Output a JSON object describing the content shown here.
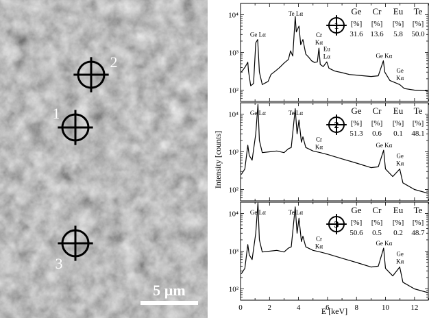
{
  "sem_image": {
    "scale_bar_label": "5 µm",
    "marker_labels": [
      "1",
      "2",
      "3"
    ]
  },
  "chart_data": {
    "type": "line",
    "xlabel": "E [keV]",
    "ylabel": "Intensity [counts]",
    "y_scale": "log",
    "x_ticks": [
      0,
      2,
      4,
      6,
      8,
      10,
      12
    ],
    "xlim": [
      0,
      13
    ],
    "ylim": [
      50,
      20000
    ],
    "y_tick_labels": [
      "10²",
      "10³",
      "10⁴"
    ],
    "table_headers": [
      "Ge",
      "Cr",
      "Eu",
      "Te"
    ],
    "table_units": [
      "[%]",
      "[%]",
      "[%]",
      "[%]"
    ],
    "panels": [
      {
        "id": "1",
        "composition": [
          "31.6",
          "13.6",
          "5.8",
          "50.0"
        ],
        "spectrum": [
          [
            0.05,
            300
          ],
          [
            0.3,
            400
          ],
          [
            0.5,
            550
          ],
          [
            0.55,
            320
          ],
          [
            0.7,
            130
          ],
          [
            0.9,
            150
          ],
          [
            1.05,
            1800
          ],
          [
            1.18,
            2200
          ],
          [
            1.3,
            300
          ],
          [
            1.5,
            140
          ],
          [
            1.9,
            170
          ],
          [
            2.1,
            260
          ],
          [
            2.4,
            320
          ],
          [
            2.7,
            400
          ],
          [
            3.0,
            520
          ],
          [
            3.3,
            650
          ],
          [
            3.45,
            1100
          ],
          [
            3.6,
            800
          ],
          [
            3.77,
            9000
          ],
          [
            3.85,
            3500
          ],
          [
            4.03,
            5000
          ],
          [
            4.15,
            1600
          ],
          [
            4.3,
            2200
          ],
          [
            4.5,
            900
          ],
          [
            4.7,
            750
          ],
          [
            4.9,
            600
          ],
          [
            5.1,
            540
          ],
          [
            5.3,
            560
          ],
          [
            5.41,
            1300
          ],
          [
            5.5,
            480
          ],
          [
            5.7,
            420
          ],
          [
            5.95,
            560
          ],
          [
            6.1,
            380
          ],
          [
            6.5,
            320
          ],
          [
            7.0,
            290
          ],
          [
            7.5,
            260
          ],
          [
            8.0,
            250
          ],
          [
            8.5,
            240
          ],
          [
            9.0,
            230
          ],
          [
            9.5,
            240
          ],
          [
            9.85,
            600
          ],
          [
            9.95,
            300
          ],
          [
            10.3,
            180
          ],
          [
            10.8,
            150
          ],
          [
            10.98,
            140
          ],
          [
            11.3,
            110
          ],
          [
            12.0,
            100
          ],
          [
            12.9,
            95
          ]
        ],
        "annotations": [
          {
            "text": "Ge Lα",
            "x": 1.2
          },
          {
            "text": "Te Lα",
            "x": 3.8
          },
          {
            "text": "Cr Kα",
            "x": 5.41
          },
          {
            "text": "Eu Lα",
            "x": 5.95
          },
          {
            "text": "Ge Kα",
            "x": 9.9
          },
          {
            "text": "Ge Kα",
            "x": 11.0
          }
        ]
      },
      {
        "id": "2",
        "composition": [
          "51.3",
          "0.6",
          "0.1",
          "48.1"
        ],
        "spectrum": [
          [
            0.05,
            250
          ],
          [
            0.3,
            350
          ],
          [
            0.5,
            1500
          ],
          [
            0.6,
            800
          ],
          [
            0.8,
            600
          ],
          [
            1.05,
            3000
          ],
          [
            1.2,
            18000
          ],
          [
            1.3,
            2000
          ],
          [
            1.5,
            950
          ],
          [
            2.0,
            1000
          ],
          [
            2.5,
            1050
          ],
          [
            3.0,
            950
          ],
          [
            3.3,
            1200
          ],
          [
            3.5,
            1300
          ],
          [
            3.77,
            14000
          ],
          [
            3.9,
            3000
          ],
          [
            4.03,
            7000
          ],
          [
            4.2,
            1800
          ],
          [
            4.3,
            2500
          ],
          [
            4.5,
            1300
          ],
          [
            5.0,
            1050
          ],
          [
            5.5,
            950
          ],
          [
            6.0,
            850
          ],
          [
            7.0,
            650
          ],
          [
            8.0,
            500
          ],
          [
            9.0,
            380
          ],
          [
            9.5,
            400
          ],
          [
            9.87,
            1100
          ],
          [
            10.0,
            350
          ],
          [
            10.5,
            220
          ],
          [
            10.98,
            350
          ],
          [
            11.2,
            150
          ],
          [
            12.0,
            100
          ],
          [
            12.9,
            80
          ]
        ],
        "annotations": [
          {
            "text": "Ge Lα",
            "x": 1.2
          },
          {
            "text": "Te Lα",
            "x": 3.8
          },
          {
            "text": "Cr Kα",
            "x": 5.41
          },
          {
            "text": "Ge Kα",
            "x": 9.9
          },
          {
            "text": "Ge Kα",
            "x": 11.0
          }
        ]
      },
      {
        "id": "3",
        "composition": [
          "50.6",
          "0.5",
          "0.2",
          "48.7"
        ],
        "spectrum": [
          [
            0.05,
            250
          ],
          [
            0.3,
            350
          ],
          [
            0.5,
            1500
          ],
          [
            0.6,
            800
          ],
          [
            0.8,
            600
          ],
          [
            1.05,
            3000
          ],
          [
            1.2,
            19000
          ],
          [
            1.3,
            2000
          ],
          [
            1.5,
            950
          ],
          [
            2.0,
            1000
          ],
          [
            2.5,
            1050
          ],
          [
            3.0,
            950
          ],
          [
            3.3,
            1200
          ],
          [
            3.5,
            1300
          ],
          [
            3.77,
            15000
          ],
          [
            3.9,
            3000
          ],
          [
            4.03,
            7500
          ],
          [
            4.2,
            1800
          ],
          [
            4.3,
            2500
          ],
          [
            4.5,
            1300
          ],
          [
            5.0,
            1050
          ],
          [
            5.5,
            950
          ],
          [
            6.0,
            850
          ],
          [
            7.0,
            650
          ],
          [
            8.0,
            500
          ],
          [
            9.0,
            380
          ],
          [
            9.5,
            400
          ],
          [
            9.87,
            1200
          ],
          [
            10.0,
            350
          ],
          [
            10.5,
            220
          ],
          [
            10.98,
            380
          ],
          [
            11.2,
            150
          ],
          [
            12.0,
            100
          ],
          [
            12.9,
            80
          ]
        ],
        "annotations": [
          {
            "text": "Ge Lα",
            "x": 1.2
          },
          {
            "text": "Te Lα",
            "x": 3.8
          },
          {
            "text": "Cr Kα",
            "x": 5.41
          },
          {
            "text": "Ge Kα",
            "x": 9.9
          },
          {
            "text": "Ge Kα",
            "x": 11.0
          }
        ]
      }
    ]
  }
}
